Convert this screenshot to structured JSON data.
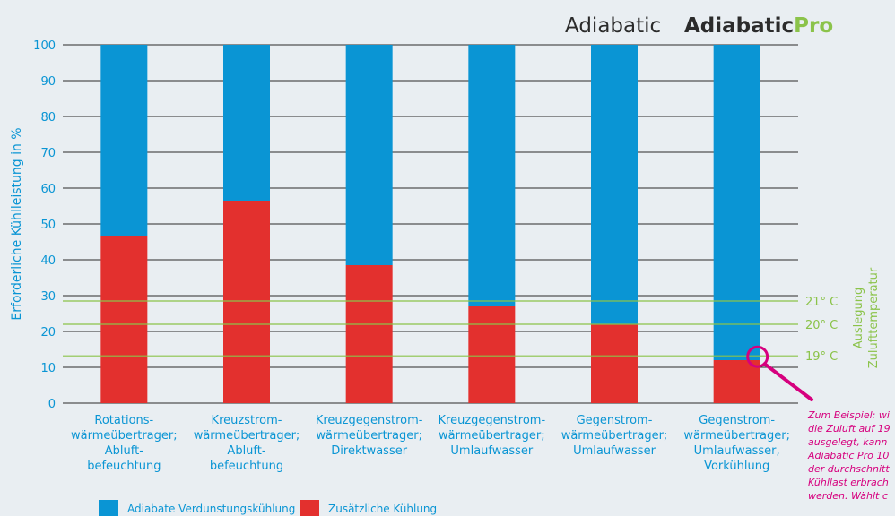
{
  "header": {
    "brand_left": "Adiabatic",
    "brand_right_main": "Adiabatic",
    "brand_right_suffix": "Pro"
  },
  "colors": {
    "blue": "#0a95d4",
    "red": "#e3302e",
    "green": "#8bc34a",
    "magenta": "#d6007e",
    "axis_text": "#0a95d4",
    "category_text": "#0a95d4"
  },
  "annotation": {
    "lines": [
      "Zum Beispiel: wi",
      "die Zuluft auf 19",
      "ausgelegt, kann",
      "Adiabatic Pro 10",
      "der durchschnitt",
      "Kühllast erbrach",
      "werden. Wählt c"
    ]
  },
  "chart_data": {
    "type": "bar",
    "stacked": true,
    "ylabel": "Erforderliche Kühlleistung in %",
    "ylim": [
      0,
      100
    ],
    "yticks": [
      0,
      10,
      20,
      30,
      40,
      50,
      60,
      70,
      80,
      90,
      100
    ],
    "grid": true,
    "categories": [
      [
        "Rotations-",
        "wärmeübertrager;",
        "Abluft-",
        "befeuchtung"
      ],
      [
        "Kreuzstrom-",
        "wärmeübertrager;",
        "Abluft-",
        "befeuchtung"
      ],
      [
        "Kreuzgegenstrom-",
        "wärmeübertrager;",
        "Direktwasser"
      ],
      [
        "Kreuzgegenstrom-",
        "wärmeübertrager;",
        "Umlaufwasser"
      ],
      [
        "Gegenstrom-",
        "wärmeübertrager;",
        "Umlaufwasser"
      ],
      [
        "Gegenstrom-",
        "wärmeübertrager;",
        "Umlaufwasser,",
        "Vorkühlung"
      ]
    ],
    "series": [
      {
        "name": "Zusätzliche Kühlung",
        "color": "#e3302e",
        "values": [
          46.5,
          56.5,
          38.5,
          27,
          22,
          12
        ]
      },
      {
        "name": "Adiabate Verdunstungskühlung",
        "color": "#0a95d4",
        "values": [
          53.5,
          43.5,
          61.5,
          73,
          78,
          88
        ]
      }
    ],
    "reference_lines": [
      {
        "label": "21° C",
        "y": 28.5
      },
      {
        "label": "20° C",
        "y": 22
      },
      {
        "label": "19° C",
        "y": 13.2
      }
    ],
    "reference_axis_label": [
      "Auslegung",
      "Zulufttemperatur"
    ],
    "highlight": {
      "category_index": 5,
      "y": 13.2
    },
    "legend_position": "bottom-left"
  }
}
